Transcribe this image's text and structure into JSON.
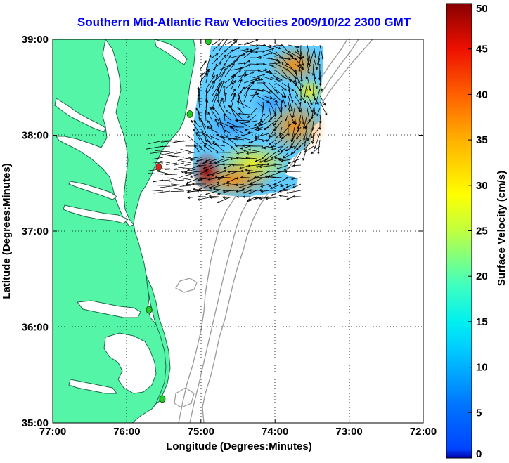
{
  "title": "Southern Mid-Atlantic Raw Velocities 2009/10/22 2300 GMT",
  "chart_data": {
    "type": "map-vector-field",
    "title": "Southern Mid-Atlantic Raw Velocities 2009/10/22 2300 GMT",
    "xlabel": "Longitude (Degrees:Minutes)",
    "ylabel": "Latitude (Degrees:Minutes)",
    "xlim_degW": [
      77,
      72
    ],
    "ylim_degN": [
      35,
      39
    ],
    "x_ticks": [
      "77:00",
      "76:00",
      "75:00",
      "74:00",
      "73:00",
      "72:00"
    ],
    "y_ticks": [
      "35:00",
      "36:00",
      "37:00",
      "38:00",
      "39:00"
    ],
    "grid": "dotted",
    "colorbar": {
      "label": "Surface Velocity (cm/s)",
      "range": [
        0,
        50
      ],
      "ticks": [
        "0",
        "5",
        "10",
        "15",
        "20",
        "25",
        "30",
        "35",
        "40",
        "45",
        "50"
      ],
      "colormap": "jet"
    },
    "stations": [
      {
        "lon": 74.9,
        "lat": 38.98,
        "color": "#22cc22"
      },
      {
        "lon": 75.15,
        "lat": 38.22,
        "color": "#22cc22"
      },
      {
        "lon": 75.57,
        "lat": 37.67,
        "color": "#dd2222"
      },
      {
        "lon": 75.7,
        "lat": 36.18,
        "color": "#22cc22"
      },
      {
        "lon": 75.52,
        "lat": 35.25,
        "color": "#22cc22"
      }
    ]
  },
  "colors": {
    "land": "#55f5a8",
    "water": "#ffffff",
    "title": "#0000ff",
    "bathymetry": "#999999"
  }
}
